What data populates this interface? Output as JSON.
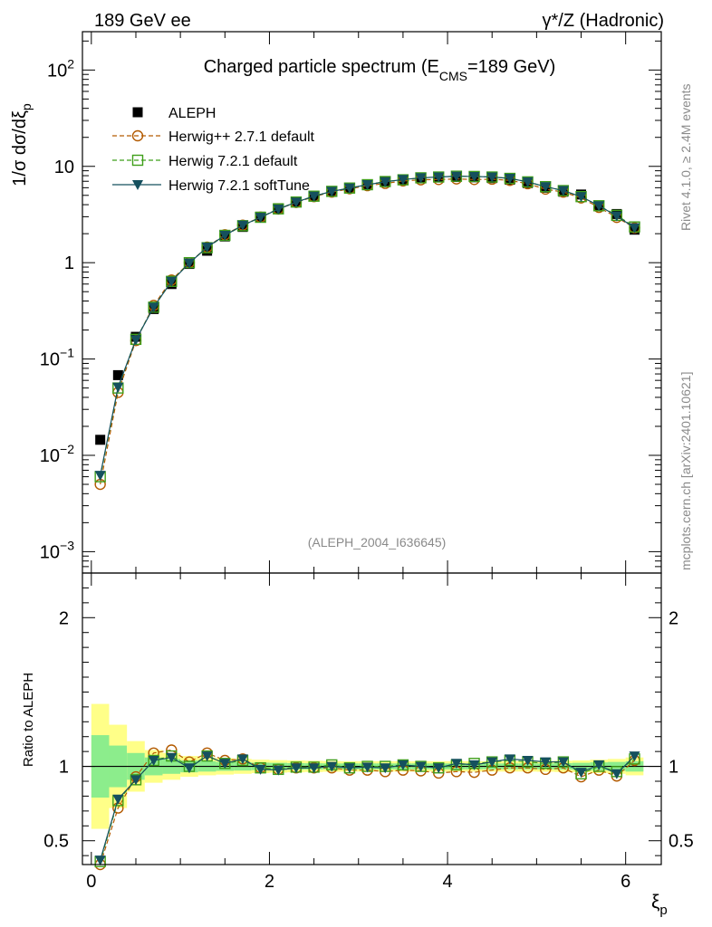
{
  "header": {
    "left": "189 GeV ee",
    "right": "γ*/Z (Hadronic)"
  },
  "side_labels": {
    "rivet": "Rivet 4.1.0, ≥ 2.4M events",
    "mcplots": "mcplots.cern.ch [arXiv:2401.10621]"
  },
  "colors": {
    "aleph": "#000000",
    "herwigpp": "#b35a00",
    "herwig721": "#3f9f1a",
    "softtune": "#15505e",
    "band_inner": "#8ced8c",
    "band_outer": "#ffff88"
  },
  "chart_data": [
    {
      "type": "scatter",
      "panel": "main",
      "title_main": "Charged particle spectrum (E",
      "title_sub": "CMS",
      "title_tail": "=189 GeV)",
      "ylabel": "1/σ  dσ/dξ",
      "ylabel_sub": "p",
      "yscale": "log",
      "ylim": [
        0.0006,
        250
      ],
      "xlim": [
        -0.1,
        6.4
      ],
      "yticks": [
        {
          "v": 0.001,
          "b": "10",
          "e": "−3"
        },
        {
          "v": 0.01,
          "b": "10",
          "e": "−2"
        },
        {
          "v": 0.1,
          "b": "10",
          "e": "−1"
        },
        {
          "v": 1,
          "b": "1",
          "e": ""
        },
        {
          "v": 10,
          "b": "10",
          "e": ""
        },
        {
          "v": 100,
          "b": "10",
          "e": "2"
        }
      ],
      "watermark": "(ALEPH_2004_I636645)",
      "x": [
        0.1,
        0.3,
        0.5,
        0.7,
        0.9,
        1.1,
        1.3,
        1.5,
        1.7,
        1.9,
        2.1,
        2.3,
        2.5,
        2.7,
        2.9,
        3.1,
        3.3,
        3.5,
        3.7,
        3.9,
        4.1,
        4.3,
        4.5,
        4.7,
        4.9,
        5.1,
        5.3,
        5.5,
        5.7,
        5.9,
        6.1
      ],
      "series": [
        {
          "name": "ALEPH",
          "marker": "square-filled",
          "values": [
            0.0145,
            0.068,
            0.17,
            0.33,
            0.6,
            0.97,
            1.33,
            1.87,
            2.35,
            3.0,
            3.68,
            4.28,
            4.92,
            5.45,
            6.0,
            6.45,
            6.95,
            7.2,
            7.55,
            7.7,
            7.75,
            7.7,
            7.55,
            7.25,
            6.7,
            6.0,
            5.45,
            5.1,
            3.85,
            3.2,
            2.2
          ]
        },
        {
          "name": "Herwig++ 2.7.1 default",
          "marker": "circle-open",
          "line": "dashed",
          "values": [
            0.005,
            0.045,
            0.155,
            0.36,
            0.66,
            1.0,
            1.45,
            1.95,
            2.45,
            2.97,
            3.6,
            4.22,
            4.85,
            5.4,
            5.85,
            6.3,
            6.65,
            7.05,
            7.25,
            7.3,
            7.4,
            7.3,
            7.35,
            7.15,
            6.6,
            5.8,
            5.4,
            4.7,
            3.75,
            2.95,
            2.3
          ]
        },
        {
          "name": "Herwig 7.2.1 default",
          "marker": "square-open",
          "line": "dashed",
          "values": [
            0.006,
            0.05,
            0.16,
            0.345,
            0.64,
            1.0,
            1.43,
            1.92,
            2.42,
            2.96,
            3.62,
            4.26,
            4.9,
            5.5,
            5.95,
            6.45,
            6.95,
            7.25,
            7.6,
            7.75,
            7.9,
            7.85,
            7.75,
            7.5,
            6.9,
            6.15,
            5.6,
            4.85,
            3.9,
            3.1,
            2.35
          ]
        },
        {
          "name": "Herwig 7.2.1 softTune",
          "marker": "triangle-down-filled",
          "line": "solid",
          "values": [
            0.0062,
            0.051,
            0.158,
            0.345,
            0.64,
            0.99,
            1.45,
            1.92,
            2.45,
            2.95,
            3.6,
            4.25,
            4.9,
            5.5,
            5.95,
            6.45,
            6.9,
            7.3,
            7.6,
            7.75,
            7.9,
            7.85,
            7.75,
            7.5,
            6.9,
            6.15,
            5.6,
            4.85,
            3.9,
            3.05,
            2.3
          ]
        }
      ]
    },
    {
      "type": "scatter",
      "panel": "ratio",
      "ylabel": "Ratio to ALEPH",
      "xlabel": "ξ",
      "xlabel_sub": "p",
      "ylim": [
        0.34,
        2.3
      ],
      "xlim": [
        -0.1,
        6.4
      ],
      "xticks": [
        0,
        2,
        4,
        6
      ],
      "yticks": [
        {
          "v": 0.5,
          "label": "0.5"
        },
        {
          "v": 1,
          "label": "1"
        },
        {
          "v": 2,
          "label": "2"
        }
      ],
      "x": [
        0.1,
        0.3,
        0.5,
        0.7,
        0.9,
        1.1,
        1.3,
        1.5,
        1.7,
        1.9,
        2.1,
        2.3,
        2.5,
        2.7,
        2.9,
        3.1,
        3.3,
        3.5,
        3.7,
        3.9,
        4.1,
        4.3,
        4.5,
        4.7,
        4.9,
        5.1,
        5.3,
        5.5,
        5.7,
        5.9,
        6.1
      ],
      "band_inner": [
        0.21,
        0.14,
        0.09,
        0.06,
        0.05,
        0.04,
        0.035,
        0.03,
        0.028,
        0.025,
        0.024,
        0.022,
        0.021,
        0.02,
        0.02,
        0.02,
        0.02,
        0.02,
        0.02,
        0.02,
        0.02,
        0.02,
        0.02,
        0.02,
        0.02,
        0.02,
        0.022,
        0.024,
        0.027,
        0.03,
        0.035
      ],
      "band_outer": [
        0.42,
        0.28,
        0.17,
        0.11,
        0.09,
        0.07,
        0.06,
        0.055,
        0.05,
        0.045,
        0.042,
        0.04,
        0.038,
        0.036,
        0.035,
        0.035,
        0.035,
        0.035,
        0.035,
        0.035,
        0.035,
        0.035,
        0.035,
        0.035,
        0.035,
        0.036,
        0.038,
        0.04,
        0.045,
        0.05,
        0.06
      ],
      "series": [
        {
          "name": "Herwig++ 2.7.1 default",
          "values": [
            0.34,
            0.72,
            0.93,
            1.09,
            1.11,
            1.03,
            1.09,
            1.04,
            1.05,
            0.99,
            0.98,
            0.99,
            0.99,
            0.99,
            0.975,
            0.975,
            0.965,
            0.975,
            0.97,
            0.955,
            0.965,
            0.96,
            0.975,
            0.99,
            0.99,
            0.98,
            0.99,
            0.93,
            0.975,
            0.935,
            1.04
          ]
        },
        {
          "name": "Herwig 7.2.1 default",
          "values": [
            0.36,
            0.77,
            0.91,
            1.04,
            1.07,
            1.0,
            1.07,
            1.02,
            1.04,
            0.99,
            0.98,
            0.995,
            0.995,
            1.01,
            0.99,
            1.0,
            1.0,
            1.01,
            1.0,
            0.99,
            1.01,
            1.02,
            1.03,
            1.04,
            1.03,
            1.02,
            1.03,
            0.95,
            1.0,
            0.965,
            1.05
          ]
        },
        {
          "name": "Herwig 7.2.1 softTune",
          "values": [
            0.37,
            0.78,
            0.91,
            1.04,
            1.06,
            0.99,
            1.07,
            1.02,
            1.05,
            0.98,
            0.975,
            0.99,
            0.99,
            1.0,
            0.99,
            0.995,
            0.99,
            1.01,
            1.0,
            0.99,
            1.02,
            1.01,
            1.03,
            1.05,
            1.04,
            1.03,
            1.03,
            0.96,
            1.01,
            0.95,
            1.07
          ]
        }
      ]
    }
  ]
}
